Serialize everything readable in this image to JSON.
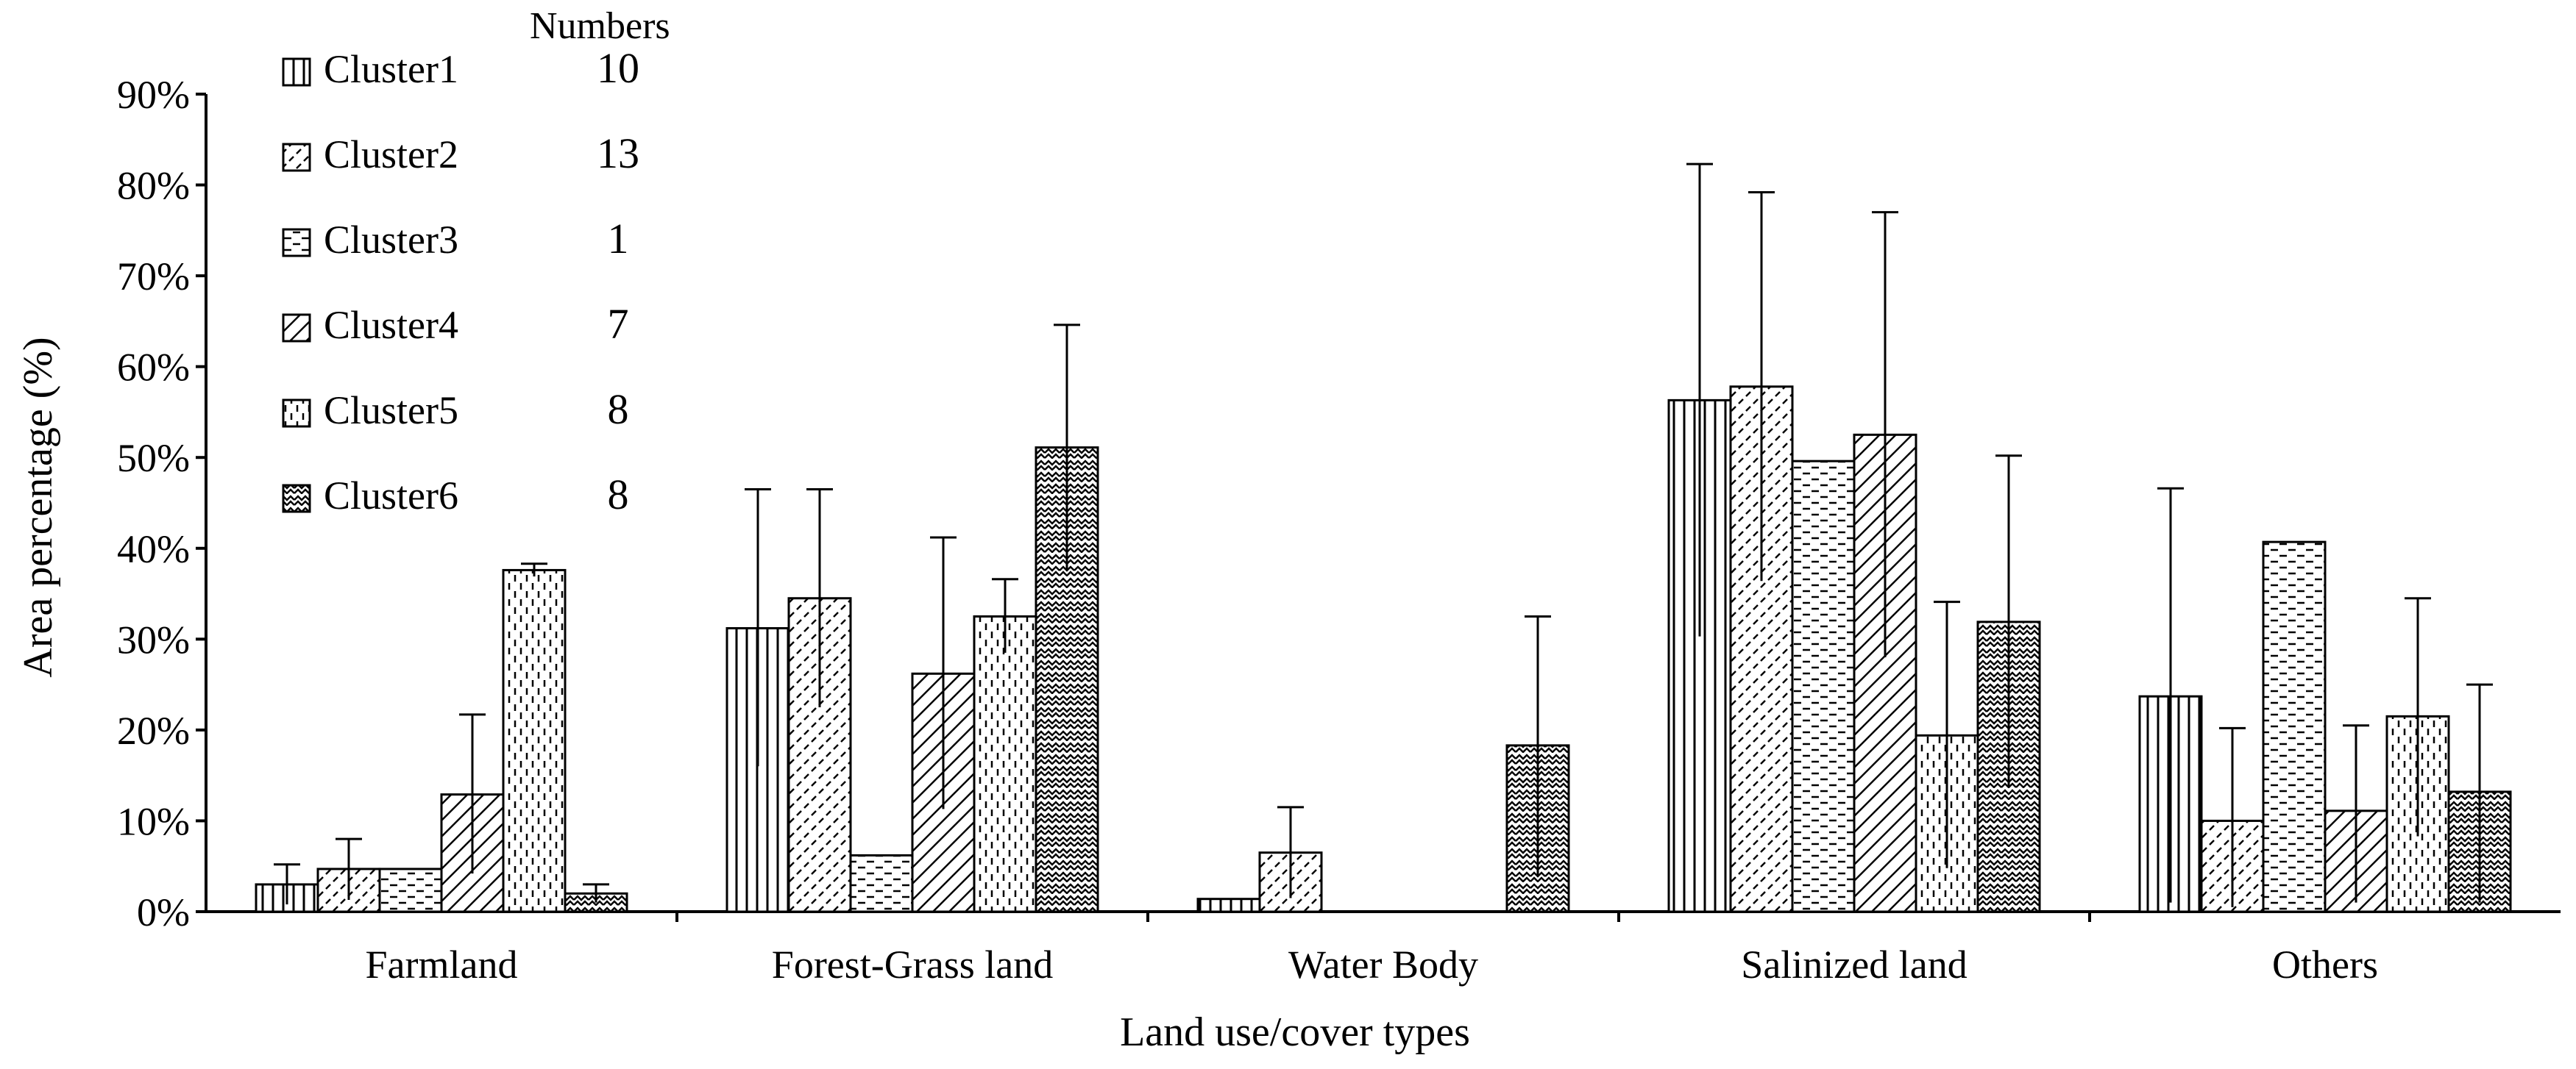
{
  "chart_data": {
    "type": "bar",
    "title": "",
    "xlabel": "Land use/cover types",
    "ylabel": "Area percentage (%)",
    "ylim": [
      0,
      90
    ],
    "yticks": [
      "0%",
      "10%",
      "20%",
      "30%",
      "40%",
      "50%",
      "60%",
      "70%",
      "80%",
      "90%"
    ],
    "categories": [
      "Farmland",
      "Forest-Grass land",
      "Water Body",
      "Salinized land",
      "Others"
    ],
    "legend_header": "Numbers",
    "legend_position": "top-left",
    "grid": false,
    "series": [
      {
        "name": "Cluster1",
        "number": "10",
        "pattern": "vertical-lines",
        "values": [
          3.0,
          31.2,
          1.4,
          56.3,
          23.7
        ],
        "error_upper": [
          5.2,
          46.5,
          null,
          82.3,
          46.6
        ],
        "error_lower": [
          0.8,
          16.0,
          null,
          30.3,
          1.0
        ]
      },
      {
        "name": "Cluster2",
        "number": "13",
        "pattern": "short-diagonal-dashes",
        "values": [
          4.7,
          34.5,
          6.5,
          57.8,
          10.0
        ],
        "error_upper": [
          8.0,
          46.5,
          11.5,
          79.2,
          20.2
        ],
        "error_lower": [
          1.3,
          22.5,
          1.5,
          36.4,
          0.5
        ]
      },
      {
        "name": "Cluster3",
        "number": "1",
        "pattern": "horizontal-dashes",
        "values": [
          4.7,
          6.2,
          0,
          49.6,
          40.7
        ],
        "error_upper": [
          null,
          null,
          null,
          null,
          null
        ],
        "error_lower": [
          null,
          null,
          null,
          null,
          null
        ]
      },
      {
        "name": "Cluster4",
        "number": "7",
        "pattern": "diagonal-lines",
        "values": [
          12.9,
          26.2,
          0,
          52.5,
          11.1
        ],
        "error_upper": [
          21.7,
          41.2,
          null,
          77.0,
          20.5
        ],
        "error_lower": [
          4.2,
          11.3,
          null,
          28.0,
          1.0
        ]
      },
      {
        "name": "Cluster5",
        "number": "8",
        "pattern": "vertical-dashes",
        "values": [
          37.6,
          32.5,
          0,
          19.4,
          21.5
        ],
        "error_upper": [
          38.3,
          36.6,
          null,
          34.1,
          34.5
        ],
        "error_lower": [
          36.9,
          28.5,
          null,
          4.8,
          8.3
        ]
      },
      {
        "name": "Cluster6",
        "number": "8",
        "pattern": "zigzag",
        "values": [
          2.0,
          51.1,
          18.3,
          31.9,
          13.2
        ],
        "error_upper": [
          3.0,
          64.6,
          32.5,
          50.2,
          25.0
        ],
        "error_lower": [
          1.0,
          37.5,
          4.0,
          13.7,
          1.0
        ]
      }
    ]
  }
}
